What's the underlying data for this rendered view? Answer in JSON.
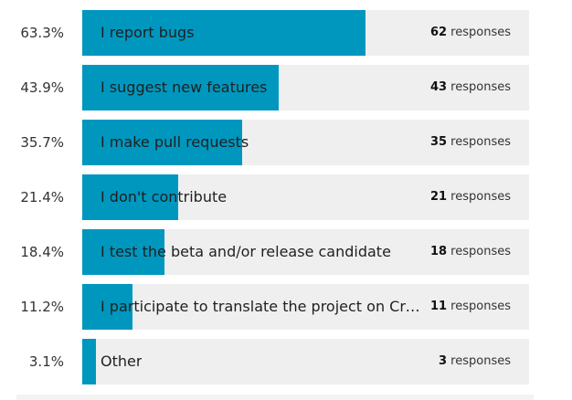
{
  "chart_data": {
    "type": "bar",
    "orientation": "horizontal",
    "fill_color": "#0097bf",
    "track_color": "#efefef",
    "responses_unit": "responses",
    "rows": [
      {
        "label": "I report bugs",
        "percent": 63.3,
        "percent_text": "63.3%",
        "responses": 62
      },
      {
        "label": "I suggest new features",
        "percent": 43.9,
        "percent_text": "43.9%",
        "responses": 43
      },
      {
        "label": "I make pull requests",
        "percent": 35.7,
        "percent_text": "35.7%",
        "responses": 35
      },
      {
        "label": "I don't contribute",
        "percent": 21.4,
        "percent_text": "21.4%",
        "responses": 21
      },
      {
        "label": "I test the beta and/or release candidate",
        "percent": 18.4,
        "percent_text": "18.4%",
        "responses": 18
      },
      {
        "label": "I participate to translate the project on Cro…",
        "percent": 11.2,
        "percent_text": "11.2%",
        "responses": 11
      },
      {
        "label": "Other",
        "percent": 3.1,
        "percent_text": "3.1%",
        "responses": 3
      }
    ]
  }
}
